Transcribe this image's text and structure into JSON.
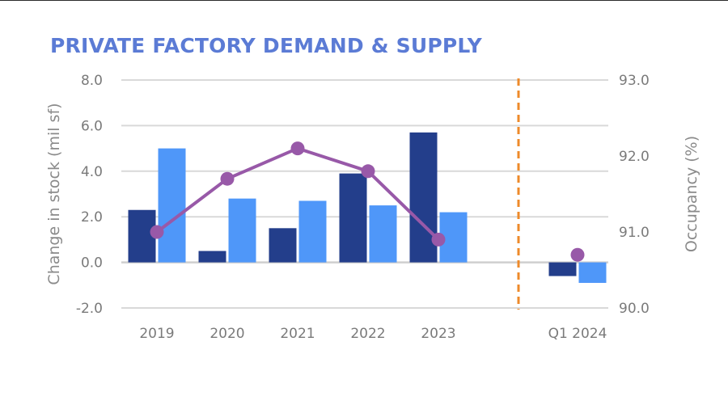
{
  "chart_data": {
    "type": "bar",
    "title": "PRIVATE FACTORY DEMAND & SUPPLY",
    "categories": [
      "2019",
      "2020",
      "2021",
      "2022",
      "2023",
      "Q1  2024"
    ],
    "series": [
      {
        "type": "bar",
        "axis": "left",
        "color": "#233e8b",
        "values": [
          2.3,
          0.5,
          1.5,
          3.9,
          5.7,
          -0.6
        ]
      },
      {
        "type": "bar",
        "axis": "left",
        "color": "#4f97f9",
        "values": [
          5.0,
          2.8,
          2.7,
          2.5,
          2.2,
          -0.9
        ]
      },
      {
        "type": "line",
        "axis": "right",
        "color": "#9859a8",
        "values": [
          91.0,
          91.7,
          92.1,
          91.8,
          90.9,
          90.7
        ],
        "line_break_before_last": true
      }
    ],
    "ylabel": "Change in stock (mil sf)",
    "y2label": "Occupancy (%)",
    "ylim": [
      -2.0,
      8.0
    ],
    "yticks": [
      "-2.0",
      "0.0",
      "2.0",
      "4.0",
      "6.0",
      "8.0"
    ],
    "y2lim": [
      90.0,
      93.0
    ],
    "y2ticks": [
      "90.0",
      "91.0",
      "92.0",
      "93.0"
    ],
    "grid": true,
    "divider": {
      "style": "dashed",
      "color": "#ee8a2a",
      "between": [
        "2023",
        "Q1  2024"
      ]
    }
  }
}
